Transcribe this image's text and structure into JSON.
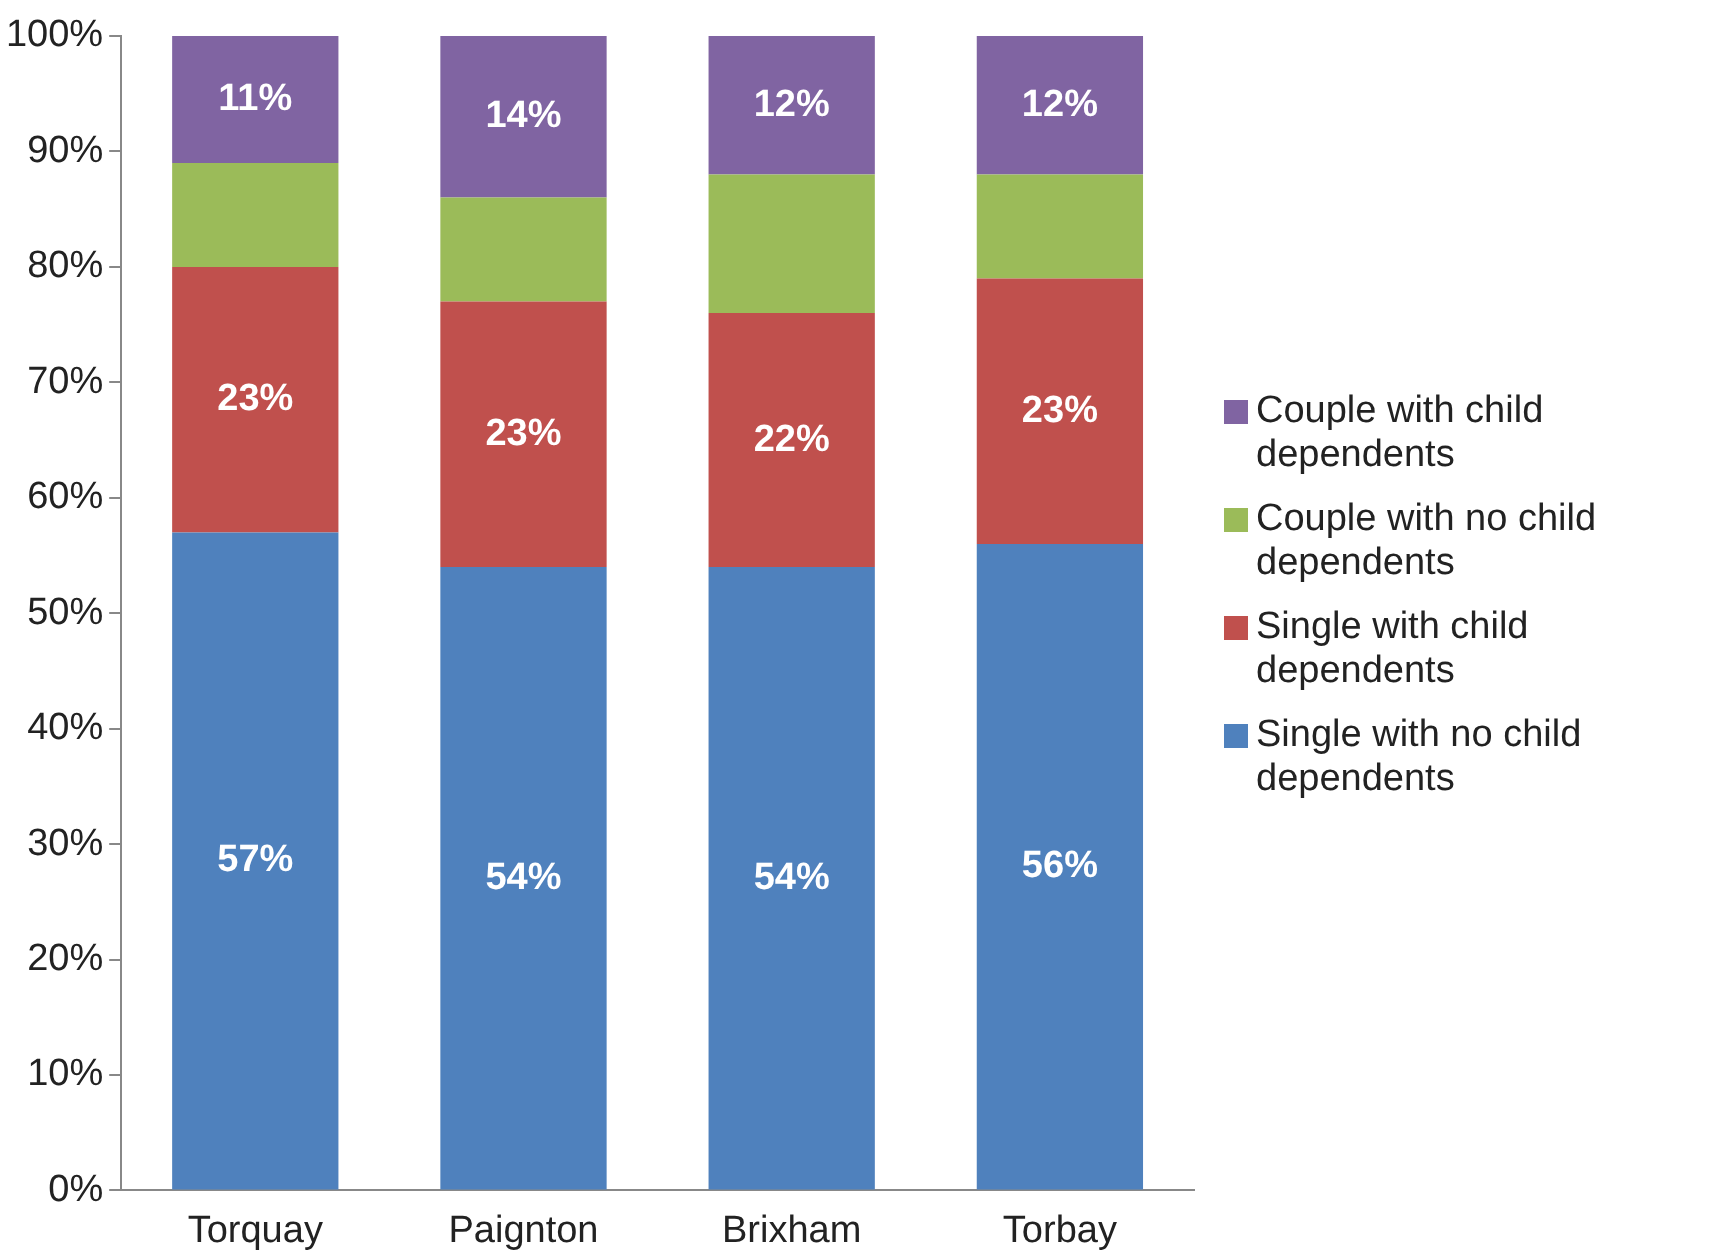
{
  "chart_data": {
    "type": "bar",
    "stacked": true,
    "categories": [
      "Torquay",
      "Paignton",
      "Brixham",
      "Torbay"
    ],
    "series": [
      {
        "name": "Single with no child dependents",
        "color": "#4f81bd",
        "values": [
          57,
          54,
          54,
          56
        ],
        "value_labels": [
          "57%",
          "54%",
          "54%",
          "56%"
        ]
      },
      {
        "name": "Single with child dependents",
        "color": "#c0504d",
        "values": [
          23,
          23,
          22,
          23
        ],
        "value_labels": [
          "23%",
          "23%",
          "22%",
          "23%"
        ]
      },
      {
        "name": "Couple with no child dependents",
        "color": "#9bbb59",
        "values": [
          9,
          9,
          12,
          9
        ],
        "value_labels": [
          null,
          null,
          null,
          null
        ]
      },
      {
        "name": "Couple with child dependents",
        "color": "#8064a2",
        "values": [
          11,
          14,
          12,
          12
        ],
        "value_labels": [
          "11%",
          "14%",
          "12%",
          "12%"
        ]
      }
    ],
    "ylim": [
      0,
      100
    ],
    "yticks": [
      {
        "value": 0,
        "label": "0%"
      },
      {
        "value": 10,
        "label": "10%"
      },
      {
        "value": 20,
        "label": "20%"
      },
      {
        "value": 30,
        "label": "30%"
      },
      {
        "value": 40,
        "label": "40%"
      },
      {
        "value": 50,
        "label": "50%"
      },
      {
        "value": 60,
        "label": "60%"
      },
      {
        "value": 70,
        "label": "70%"
      },
      {
        "value": 80,
        "label": "80%"
      },
      {
        "value": 90,
        "label": "90%"
      },
      {
        "value": 100,
        "label": "100%"
      }
    ],
    "grid": false,
    "legend": "right"
  }
}
